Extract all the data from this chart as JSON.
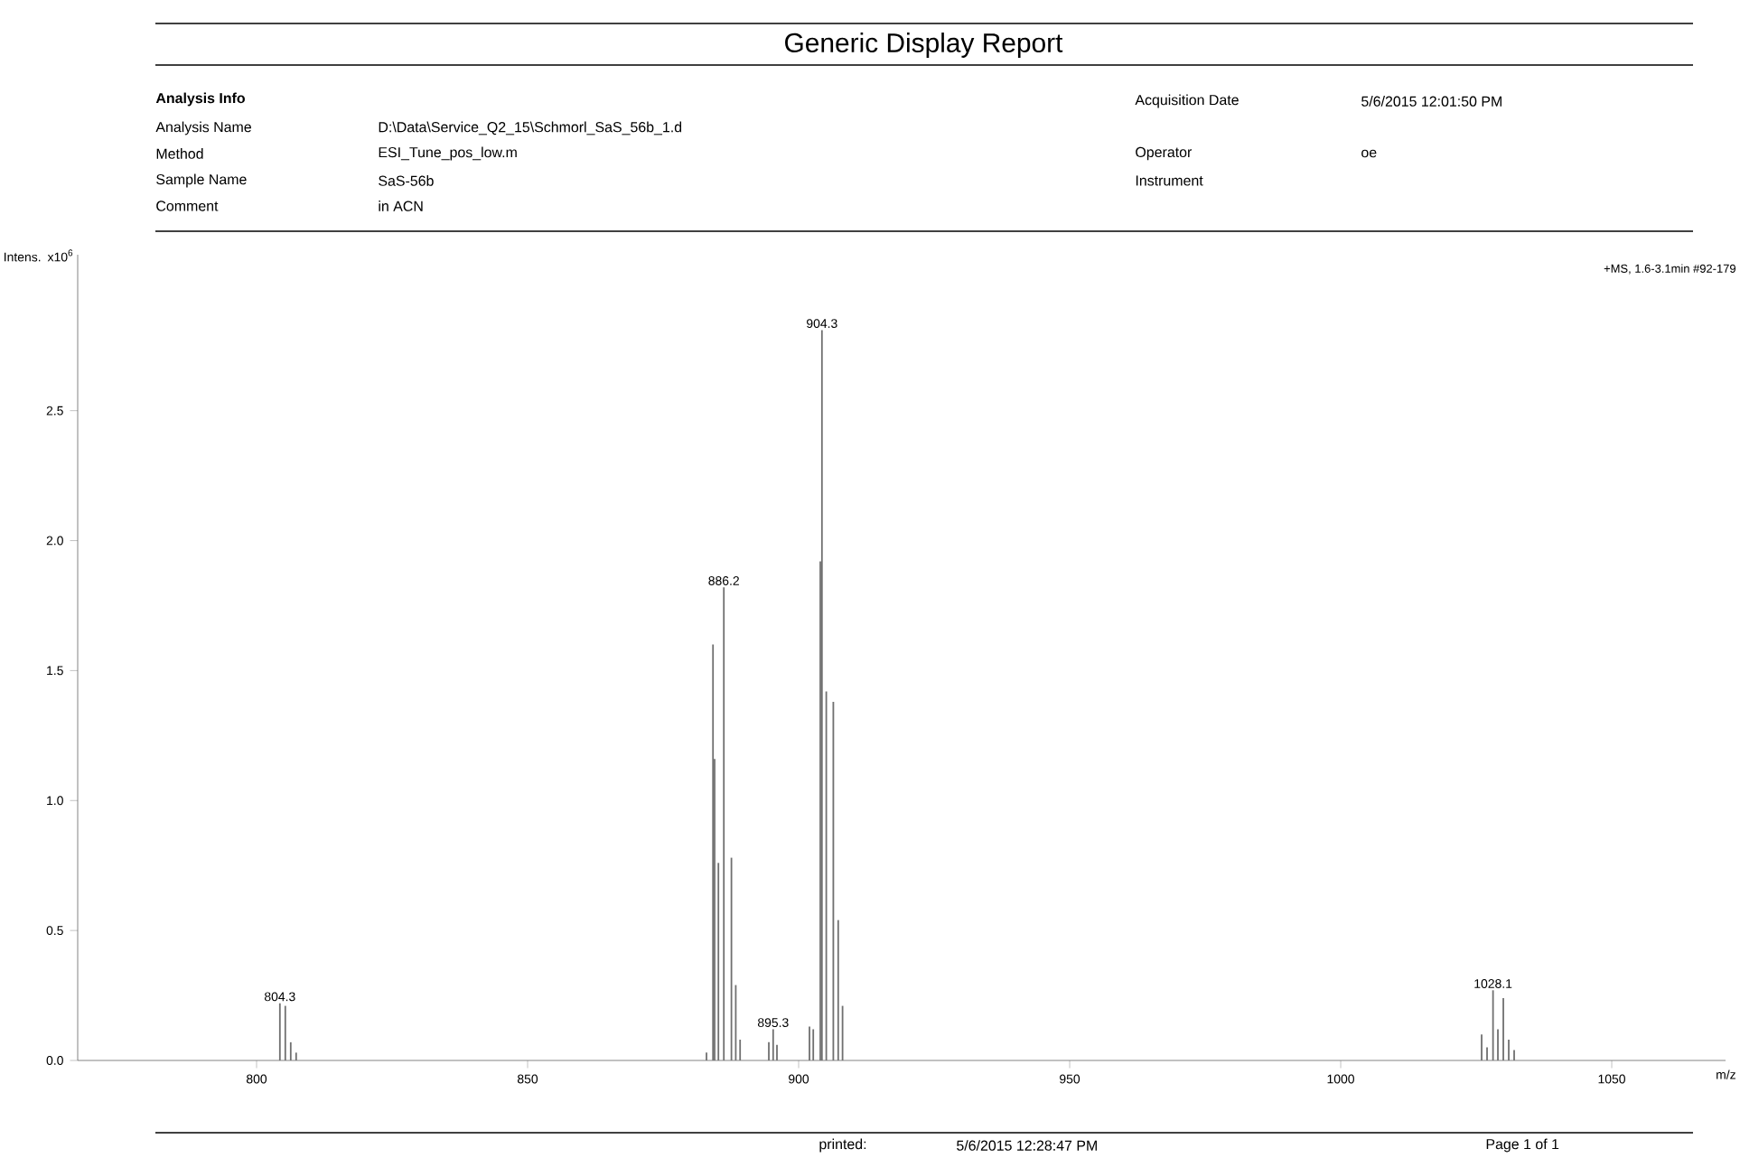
{
  "chart_data": {
    "type": "bar",
    "title": "Generic Display Report",
    "xlabel": "m/z",
    "ylabel": "Intens. x10$^{6}$",
    "x": [
      804.3,
      805.3,
      806.3,
      807.3,
      883.0,
      884.2,
      884.5,
      885.2,
      886.2,
      887.6,
      888.4,
      889.2,
      894.5,
      895.3,
      896.0,
      902.0,
      902.7,
      904.0,
      904.3,
      905.1,
      906.4,
      907.3,
      908.1,
      1026.0,
      1027.0,
      1028.1,
      1029.0,
      1030.0,
      1031.0,
      1032.0
    ],
    "values": [
      0.22,
      0.21,
      0.07,
      0.03,
      0.03,
      1.6,
      1.16,
      0.76,
      1.82,
      0.78,
      0.29,
      0.08,
      0.07,
      0.12,
      0.06,
      0.13,
      0.12,
      1.92,
      2.81,
      1.42,
      1.38,
      0.54,
      0.21,
      0.1,
      0.05,
      0.27,
      0.12,
      0.24,
      0.08,
      0.04
    ],
    "color": "#707070",
    "xlim": [
      767,
      1071
    ],
    "ylim": [
      0,
      3.1
    ],
    "xticks": [
      800,
      850,
      900,
      950,
      1000,
      1050
    ],
    "yticks": [
      {
        "value": 0,
        "label": "0.0"
      },
      {
        "value": 0.5,
        "label": "0.5"
      },
      {
        "value": 1.0,
        "label": "1.0"
      },
      {
        "value": 1.5,
        "label": "1.5"
      },
      {
        "value": 2.0,
        "label": "2.0"
      },
      {
        "value": 2.5,
        "label": "2.5"
      }
    ],
    "annotations": [
      {
        "text": "804.3",
        "x": 804.3,
        "y": 0.22
      },
      {
        "text": "886.2",
        "x": 886.2,
        "y": 1.82
      },
      {
        "text": "895.3",
        "x": 895.3,
        "y": 0.12
      },
      {
        "text": "904.3",
        "x": 904.3,
        "y": 2.81
      },
      {
        "text": "1028.1",
        "x": 1028.1,
        "y": 0.27
      },
      "+MS, 1.6-3.1min #92-179",
      "Analysis Info",
      "Analysis Name",
      "D:\\Data\\Service_Q2_15\\Schmorl_SaS_56b_1.d",
      "Method",
      "ESI_Tune_pos_low.m",
      "Sample Name",
      "SaS-56b",
      "Comment",
      "in ACN",
      "Acquisition Date",
      "5/6/2015 12:01:50 PM",
      "Operator",
      "oe",
      "Instrument",
      "printed:",
      "5/6/2015 12:28:47 PM",
      "Page 1 of 1"
    ]
  }
}
